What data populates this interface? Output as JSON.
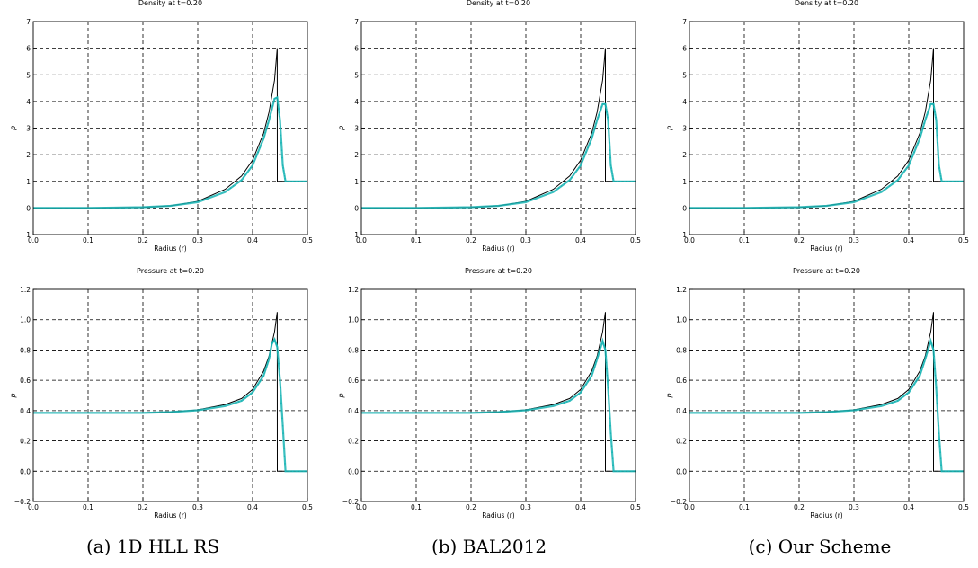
{
  "colors": {
    "exact": "#000000",
    "numeric": "#18b4b4",
    "grid": "#000000"
  },
  "panel_titles": {
    "density": "Density  at  t=0.20",
    "pressure": "Pressure  at  t=0.20"
  },
  "captions": [
    "(a) 1D HLL RS",
    "(b) BAL2012",
    "(c) Our Scheme"
  ],
  "chart_data": [
    {
      "type": "line",
      "title": "Density  at  t=0.20",
      "xlabel": "Radius (r)",
      "ylabel": "ρ",
      "xlim": [
        0.0,
        0.5
      ],
      "ylim": [
        -1,
        7
      ],
      "grid": true,
      "xticks": [
        "0.0",
        "0.1",
        "0.2",
        "0.3",
        "0.4",
        "0.5"
      ],
      "yticks": [
        "−1",
        "0",
        "1",
        "2",
        "3",
        "4",
        "5",
        "6",
        "7"
      ],
      "series": [
        {
          "x": [
            0,
            0.1,
            0.2,
            0.25,
            0.3,
            0.35,
            0.38,
            0.4,
            0.42,
            0.43,
            0.44,
            0.445,
            0.4451,
            0.5
          ],
          "y": [
            0,
            0,
            0.02,
            0.08,
            0.25,
            0.7,
            1.2,
            1.8,
            2.8,
            3.6,
            4.8,
            6.0,
            1.0,
            1.0
          ]
        },
        {
          "x": [
            0,
            0.1,
            0.2,
            0.25,
            0.3,
            0.35,
            0.38,
            0.4,
            0.42,
            0.43,
            0.44,
            0.445,
            0.45,
            0.455,
            0.46,
            0.5
          ],
          "y": [
            0,
            0,
            0.03,
            0.08,
            0.22,
            0.6,
            1.05,
            1.6,
            2.6,
            3.3,
            4.1,
            4.15,
            3.3,
            1.6,
            1.0,
            1.0
          ]
        }
      ]
    },
    {
      "type": "line",
      "title": "Density  at  t=0.20",
      "xlabel": "Radius (r)",
      "ylabel": "ρ",
      "xlim": [
        0.0,
        0.5
      ],
      "ylim": [
        -1,
        7
      ],
      "grid": true,
      "xticks": [
        "0.0",
        "0.1",
        "0.2",
        "0.3",
        "0.4",
        "0.5"
      ],
      "yticks": [
        "−1",
        "0",
        "1",
        "2",
        "3",
        "4",
        "5",
        "6",
        "7"
      ],
      "series": [
        {
          "x": [
            0,
            0.1,
            0.2,
            0.25,
            0.3,
            0.35,
            0.38,
            0.4,
            0.42,
            0.43,
            0.44,
            0.445,
            0.4451,
            0.5
          ],
          "y": [
            0,
            0,
            0.02,
            0.08,
            0.25,
            0.7,
            1.2,
            1.8,
            2.8,
            3.6,
            4.8,
            6.0,
            1.0,
            1.0
          ]
        },
        {
          "x": [
            0,
            0.1,
            0.2,
            0.25,
            0.3,
            0.35,
            0.38,
            0.4,
            0.42,
            0.43,
            0.44,
            0.445,
            0.45,
            0.455,
            0.46,
            0.5
          ],
          "y": [
            0,
            0,
            0.03,
            0.08,
            0.22,
            0.6,
            1.05,
            1.6,
            2.6,
            3.3,
            3.9,
            3.9,
            3.3,
            1.6,
            1.0,
            1.0
          ]
        }
      ]
    },
    {
      "type": "line",
      "title": "Density  at  t=0.20",
      "xlabel": "Radius (r)",
      "ylabel": "ρ",
      "xlim": [
        0.0,
        0.5
      ],
      "ylim": [
        -1,
        7
      ],
      "grid": true,
      "xticks": [
        "0.0",
        "0.1",
        "0.2",
        "0.3",
        "0.4",
        "0.5"
      ],
      "yticks": [
        "−1",
        "0",
        "1",
        "2",
        "3",
        "4",
        "5",
        "6",
        "7"
      ],
      "series": [
        {
          "x": [
            0,
            0.1,
            0.2,
            0.25,
            0.3,
            0.35,
            0.38,
            0.4,
            0.42,
            0.43,
            0.44,
            0.445,
            0.4451,
            0.5
          ],
          "y": [
            0,
            0,
            0.02,
            0.08,
            0.25,
            0.7,
            1.2,
            1.8,
            2.8,
            3.6,
            4.8,
            6.0,
            1.0,
            1.0
          ]
        },
        {
          "x": [
            0,
            0.1,
            0.2,
            0.25,
            0.3,
            0.35,
            0.38,
            0.4,
            0.42,
            0.43,
            0.44,
            0.445,
            0.45,
            0.455,
            0.46,
            0.5
          ],
          "y": [
            0,
            0,
            0.03,
            0.08,
            0.22,
            0.6,
            1.05,
            1.6,
            2.6,
            3.3,
            3.9,
            3.9,
            3.3,
            1.6,
            1.0,
            1.0
          ]
        }
      ]
    },
    {
      "type": "line",
      "title": "Pressure  at  t=0.20",
      "xlabel": "Radius (r)",
      "ylabel": "p",
      "xlim": [
        0.0,
        0.5
      ],
      "ylim": [
        -0.2,
        1.2
      ],
      "grid": true,
      "xticks": [
        "0.0",
        "0.1",
        "0.2",
        "0.3",
        "0.4",
        "0.5"
      ],
      "yticks": [
        "−0.2",
        "0.0",
        "0.2",
        "0.4",
        "0.6",
        "0.8",
        "1.0",
        "1.2"
      ],
      "series": [
        {
          "x": [
            0,
            0.1,
            0.2,
            0.25,
            0.3,
            0.35,
            0.38,
            0.4,
            0.42,
            0.43,
            0.44,
            0.445,
            0.4451,
            0.5
          ],
          "y": [
            0.385,
            0.385,
            0.385,
            0.39,
            0.405,
            0.44,
            0.48,
            0.54,
            0.66,
            0.76,
            0.92,
            1.05,
            0.0,
            0.0
          ]
        },
        {
          "x": [
            0,
            0.1,
            0.2,
            0.25,
            0.3,
            0.35,
            0.38,
            0.4,
            0.42,
            0.43,
            0.435,
            0.44,
            0.445,
            0.45,
            0.455,
            0.46,
            0.5
          ],
          "y": [
            0.385,
            0.385,
            0.385,
            0.39,
            0.402,
            0.43,
            0.465,
            0.52,
            0.63,
            0.74,
            0.84,
            0.87,
            0.82,
            0.6,
            0.3,
            0.0,
            0.0
          ]
        }
      ]
    },
    {
      "type": "line",
      "title": "Pressure  at  t=0.20",
      "xlabel": "Radius (r)",
      "ylabel": "p",
      "xlim": [
        0.0,
        0.5
      ],
      "ylim": [
        -0.2,
        1.2
      ],
      "grid": true,
      "xticks": [
        "0.0",
        "0.1",
        "0.2",
        "0.3",
        "0.4",
        "0.5"
      ],
      "yticks": [
        "−0.2",
        "0.0",
        "0.2",
        "0.4",
        "0.6",
        "0.8",
        "1.0",
        "1.2"
      ],
      "series": [
        {
          "x": [
            0,
            0.1,
            0.2,
            0.25,
            0.3,
            0.35,
            0.38,
            0.4,
            0.42,
            0.43,
            0.44,
            0.445,
            0.4451,
            0.5
          ],
          "y": [
            0.385,
            0.385,
            0.385,
            0.39,
            0.405,
            0.44,
            0.48,
            0.54,
            0.66,
            0.76,
            0.92,
            1.05,
            0.0,
            0.0
          ]
        },
        {
          "x": [
            0,
            0.1,
            0.2,
            0.25,
            0.3,
            0.35,
            0.38,
            0.4,
            0.42,
            0.43,
            0.44,
            0.445,
            0.45,
            0.455,
            0.46,
            0.5
          ],
          "y": [
            0.385,
            0.385,
            0.385,
            0.39,
            0.402,
            0.43,
            0.465,
            0.52,
            0.63,
            0.74,
            0.86,
            0.8,
            0.55,
            0.25,
            0.0,
            0.0
          ]
        }
      ]
    },
    {
      "type": "line",
      "title": "Pressure  at  t=0.20",
      "xlabel": "Radius (r)",
      "ylabel": "p",
      "xlim": [
        0.0,
        0.5
      ],
      "ylim": [
        -0.2,
        1.2
      ],
      "grid": true,
      "xticks": [
        "0.0",
        "0.1",
        "0.2",
        "0.3",
        "0.4",
        "0.5"
      ],
      "yticks": [
        "−0.2",
        "0.0",
        "0.2",
        "0.4",
        "0.6",
        "0.8",
        "1.0",
        "1.2"
      ],
      "series": [
        {
          "x": [
            0,
            0.1,
            0.2,
            0.25,
            0.3,
            0.35,
            0.38,
            0.4,
            0.42,
            0.43,
            0.44,
            0.445,
            0.4451,
            0.5
          ],
          "y": [
            0.385,
            0.385,
            0.385,
            0.39,
            0.405,
            0.44,
            0.48,
            0.54,
            0.66,
            0.76,
            0.92,
            1.05,
            0.0,
            0.0
          ]
        },
        {
          "x": [
            0,
            0.1,
            0.2,
            0.25,
            0.3,
            0.35,
            0.38,
            0.4,
            0.42,
            0.43,
            0.44,
            0.445,
            0.45,
            0.455,
            0.46,
            0.5
          ],
          "y": [
            0.385,
            0.385,
            0.385,
            0.39,
            0.402,
            0.43,
            0.465,
            0.52,
            0.63,
            0.74,
            0.86,
            0.8,
            0.55,
            0.25,
            0.0,
            0.0
          ]
        }
      ]
    }
  ]
}
